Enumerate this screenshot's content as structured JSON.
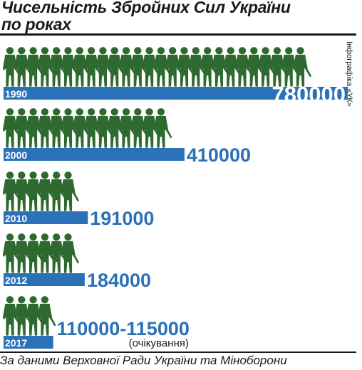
{
  "title_line1": "Чисельність Збройних Сил України",
  "title_line2": "по роках",
  "credit": "Інфографіка «УК»",
  "source": "За даними Верховної Ради України та Міноборони",
  "colors": {
    "bar": "#2a71b8",
    "soldier": "#2e6a2f",
    "text": "#1a1a1a"
  },
  "icon": "soldier-icon",
  "chart_data": {
    "type": "bar",
    "orientation": "horizontal",
    "categories": [
      "1990",
      "2000",
      "2010",
      "2012",
      "2017"
    ],
    "values": [
      780000,
      410000,
      191000,
      184000,
      112500
    ],
    "value_labels": [
      "780000",
      "410000",
      "191000",
      "184000",
      "110000-115000"
    ],
    "notes": [
      "",
      "",
      "",
      "",
      "(очікування)"
    ]
  }
}
